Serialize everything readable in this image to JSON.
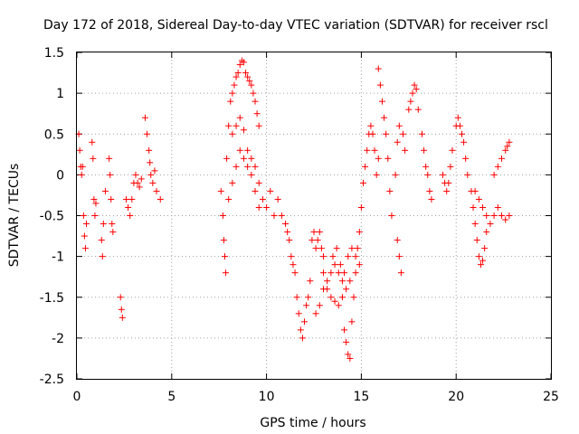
{
  "chart_data": {
    "type": "scatter",
    "title": "Day 172 of 2018, Sidereal Day-to-day VTEC variation (SDTVAR) for receiver rscl",
    "xlabel": "GPS time / hours",
    "ylabel": "SDTVAR / TECUs",
    "xlim": [
      0,
      25
    ],
    "ylim": [
      -2.5,
      1.5
    ],
    "xticks": [
      0,
      5,
      10,
      15,
      20,
      25
    ],
    "xtick_labels": [
      "0",
      "5",
      "10",
      "15",
      "20",
      "25"
    ],
    "yticks": [
      1.5,
      1,
      0.5,
      0,
      -0.5,
      -1,
      -1.5,
      -2,
      -2.5
    ],
    "ytick_labels": [
      "1.5",
      "1",
      "0.5",
      "0",
      "-0.5",
      "-1",
      "-1.5",
      "-2",
      "-2.5"
    ],
    "grid": true,
    "marker": "+",
    "marker_color": "#ff0000",
    "series": [
      {
        "name": "rscl",
        "points": [
          [
            0.1,
            0.5
          ],
          [
            0.15,
            0.3
          ],
          [
            0.2,
            0.1
          ],
          [
            0.25,
            0.0
          ],
          [
            0.3,
            0.1
          ],
          [
            0.35,
            -0.5
          ],
          [
            0.4,
            -0.75
          ],
          [
            0.45,
            -0.9
          ],
          [
            0.5,
            -0.6
          ],
          [
            0.8,
            0.4
          ],
          [
            0.85,
            0.2
          ],
          [
            0.9,
            -0.3
          ],
          [
            0.95,
            -0.5
          ],
          [
            1.0,
            -0.35
          ],
          [
            1.3,
            -0.8
          ],
          [
            1.35,
            -1.0
          ],
          [
            1.4,
            -0.6
          ],
          [
            1.5,
            -0.2
          ],
          [
            1.7,
            0.2
          ],
          [
            1.75,
            0.0
          ],
          [
            1.8,
            -0.3
          ],
          [
            1.85,
            -0.6
          ],
          [
            1.9,
            -0.7
          ],
          [
            2.3,
            -1.5
          ],
          [
            2.35,
            -1.65
          ],
          [
            2.4,
            -1.75
          ],
          [
            2.6,
            -0.3
          ],
          [
            2.7,
            -0.4
          ],
          [
            2.8,
            -0.5
          ],
          [
            2.9,
            -0.3
          ],
          [
            3.0,
            -0.1
          ],
          [
            3.1,
            0.0
          ],
          [
            3.2,
            -0.1
          ],
          [
            3.3,
            -0.15
          ],
          [
            3.4,
            -0.05
          ],
          [
            3.6,
            0.7
          ],
          [
            3.7,
            0.5
          ],
          [
            3.8,
            0.3
          ],
          [
            3.85,
            0.15
          ],
          [
            3.9,
            0.0
          ],
          [
            4.0,
            -0.1
          ],
          [
            4.1,
            0.05
          ],
          [
            4.2,
            -0.2
          ],
          [
            4.4,
            -0.3
          ],
          [
            7.6,
            -0.2
          ],
          [
            7.7,
            -0.5
          ],
          [
            7.75,
            -0.8
          ],
          [
            7.8,
            -1.0
          ],
          [
            7.85,
            -1.2
          ],
          [
            7.9,
            0.2
          ],
          [
            8.0,
            0.6
          ],
          [
            8.1,
            0.9
          ],
          [
            8.2,
            1.0
          ],
          [
            8.3,
            1.1
          ],
          [
            8.4,
            1.2
          ],
          [
            8.5,
            1.25
          ],
          [
            8.6,
            1.35
          ],
          [
            8.7,
            1.4
          ],
          [
            8.8,
            1.38
          ],
          [
            8.9,
            1.25
          ],
          [
            9.0,
            1.2
          ],
          [
            9.1,
            1.15
          ],
          [
            9.2,
            1.1
          ],
          [
            9.3,
            1.0
          ],
          [
            9.4,
            0.9
          ],
          [
            9.5,
            0.75
          ],
          [
            9.6,
            0.6
          ],
          [
            8.2,
            0.5
          ],
          [
            8.4,
            0.6
          ],
          [
            8.6,
            0.7
          ],
          [
            8.8,
            0.55
          ],
          [
            9.0,
            0.3
          ],
          [
            9.2,
            0.2
          ],
          [
            9.4,
            0.1
          ],
          [
            9.6,
            -0.1
          ],
          [
            9.8,
            -0.3
          ],
          [
            10.0,
            -0.4
          ],
          [
            8.0,
            -0.3
          ],
          [
            8.2,
            -0.1
          ],
          [
            8.4,
            0.1
          ],
          [
            8.6,
            0.3
          ],
          [
            8.8,
            0.2
          ],
          [
            9.0,
            0.1
          ],
          [
            9.2,
            0.0
          ],
          [
            9.4,
            -0.2
          ],
          [
            9.6,
            -0.4
          ],
          [
            10.2,
            -0.2
          ],
          [
            10.4,
            -0.5
          ],
          [
            10.6,
            -0.3
          ],
          [
            10.8,
            -0.5
          ],
          [
            11.0,
            -0.6
          ],
          [
            11.1,
            -0.7
          ],
          [
            11.2,
            -0.8
          ],
          [
            11.3,
            -1.0
          ],
          [
            11.4,
            -1.1
          ],
          [
            11.5,
            -1.2
          ],
          [
            11.6,
            -1.5
          ],
          [
            11.7,
            -1.7
          ],
          [
            11.8,
            -1.9
          ],
          [
            11.9,
            -2.0
          ],
          [
            12.0,
            -1.8
          ],
          [
            12.1,
            -1.6
          ],
          [
            12.2,
            -1.5
          ],
          [
            12.3,
            -1.3
          ],
          [
            12.4,
            -0.8
          ],
          [
            12.5,
            -0.7
          ],
          [
            12.6,
            -0.9
          ],
          [
            12.7,
            -0.8
          ],
          [
            12.8,
            -0.7
          ],
          [
            12.9,
            -0.9
          ],
          [
            13.0,
            -1.0
          ],
          [
            12.6,
            -1.7
          ],
          [
            12.8,
            -1.6
          ],
          [
            13.0,
            -1.4
          ],
          [
            13.2,
            -1.3
          ],
          [
            13.4,
            -1.2
          ],
          [
            13.6,
            -1.1
          ],
          [
            13.8,
            -1.2
          ],
          [
            14.0,
            -1.3
          ],
          [
            13.0,
            -1.2
          ],
          [
            13.2,
            -1.4
          ],
          [
            13.4,
            -1.5
          ],
          [
            13.6,
            -1.55
          ],
          [
            13.8,
            -1.6
          ],
          [
            14.0,
            -1.5
          ],
          [
            14.2,
            -1.4
          ],
          [
            14.4,
            -1.3
          ],
          [
            13.5,
            -1.0
          ],
          [
            13.7,
            -0.9
          ],
          [
            13.9,
            -1.1
          ],
          [
            14.1,
            -1.2
          ],
          [
            14.3,
            -1.0
          ],
          [
            14.5,
            -0.9
          ],
          [
            14.7,
            -1.0
          ],
          [
            14.9,
            -1.1
          ],
          [
            14.1,
            -1.9
          ],
          [
            14.2,
            -2.05
          ],
          [
            14.3,
            -2.2
          ],
          [
            14.4,
            -2.25
          ],
          [
            14.5,
            -1.8
          ],
          [
            14.6,
            -1.5
          ],
          [
            14.7,
            -1.2
          ],
          [
            14.8,
            -0.9
          ],
          [
            14.9,
            -0.7
          ],
          [
            15.0,
            -0.4
          ],
          [
            15.1,
            -0.1
          ],
          [
            15.2,
            0.1
          ],
          [
            15.3,
            0.3
          ],
          [
            15.4,
            0.5
          ],
          [
            15.5,
            0.6
          ],
          [
            15.6,
            0.5
          ],
          [
            15.7,
            0.3
          ],
          [
            15.8,
            0.0
          ],
          [
            15.9,
            0.2
          ],
          [
            15.9,
            1.3
          ],
          [
            16.0,
            1.1
          ],
          [
            16.1,
            0.9
          ],
          [
            16.2,
            0.7
          ],
          [
            16.3,
            0.5
          ],
          [
            16.4,
            0.2
          ],
          [
            16.5,
            -0.2
          ],
          [
            16.6,
            -0.5
          ],
          [
            16.9,
            -0.8
          ],
          [
            17.0,
            -1.0
          ],
          [
            17.1,
            -1.2
          ],
          [
            16.8,
            0.0
          ],
          [
            16.9,
            0.4
          ],
          [
            17.0,
            0.6
          ],
          [
            17.2,
            0.5
          ],
          [
            17.3,
            0.3
          ],
          [
            17.5,
            0.8
          ],
          [
            17.6,
            0.9
          ],
          [
            17.7,
            1.0
          ],
          [
            17.8,
            1.1
          ],
          [
            17.9,
            1.05
          ],
          [
            18.0,
            0.8
          ],
          [
            18.2,
            0.5
          ],
          [
            18.3,
            0.3
          ],
          [
            18.4,
            0.1
          ],
          [
            18.5,
            0.0
          ],
          [
            18.6,
            -0.2
          ],
          [
            18.7,
            -0.3
          ],
          [
            19.3,
            0.0
          ],
          [
            19.4,
            -0.1
          ],
          [
            19.5,
            -0.2
          ],
          [
            19.6,
            -0.1
          ],
          [
            19.7,
            0.1
          ],
          [
            19.8,
            0.3
          ],
          [
            20.0,
            0.6
          ],
          [
            20.1,
            0.7
          ],
          [
            20.2,
            0.6
          ],
          [
            20.3,
            0.5
          ],
          [
            20.4,
            0.4
          ],
          [
            20.5,
            0.2
          ],
          [
            20.6,
            0.0
          ],
          [
            20.8,
            -0.2
          ],
          [
            20.9,
            -0.4
          ],
          [
            21.0,
            -0.6
          ],
          [
            21.1,
            -0.8
          ],
          [
            21.2,
            -1.0
          ],
          [
            21.3,
            -1.1
          ],
          [
            21.4,
            -1.05
          ],
          [
            21.5,
            -0.9
          ],
          [
            21.6,
            -0.7
          ],
          [
            21.0,
            -0.2
          ],
          [
            21.2,
            -0.3
          ],
          [
            21.4,
            -0.4
          ],
          [
            21.6,
            -0.5
          ],
          [
            21.8,
            -0.6
          ],
          [
            22.0,
            -0.5
          ],
          [
            22.0,
            0.0
          ],
          [
            22.2,
            0.1
          ],
          [
            22.4,
            0.2
          ],
          [
            22.6,
            0.3
          ],
          [
            22.7,
            0.35
          ],
          [
            22.8,
            0.4
          ],
          [
            22.2,
            -0.4
          ],
          [
            22.4,
            -0.5
          ],
          [
            22.6,
            -0.55
          ],
          [
            22.8,
            -0.5
          ]
        ]
      }
    ]
  }
}
